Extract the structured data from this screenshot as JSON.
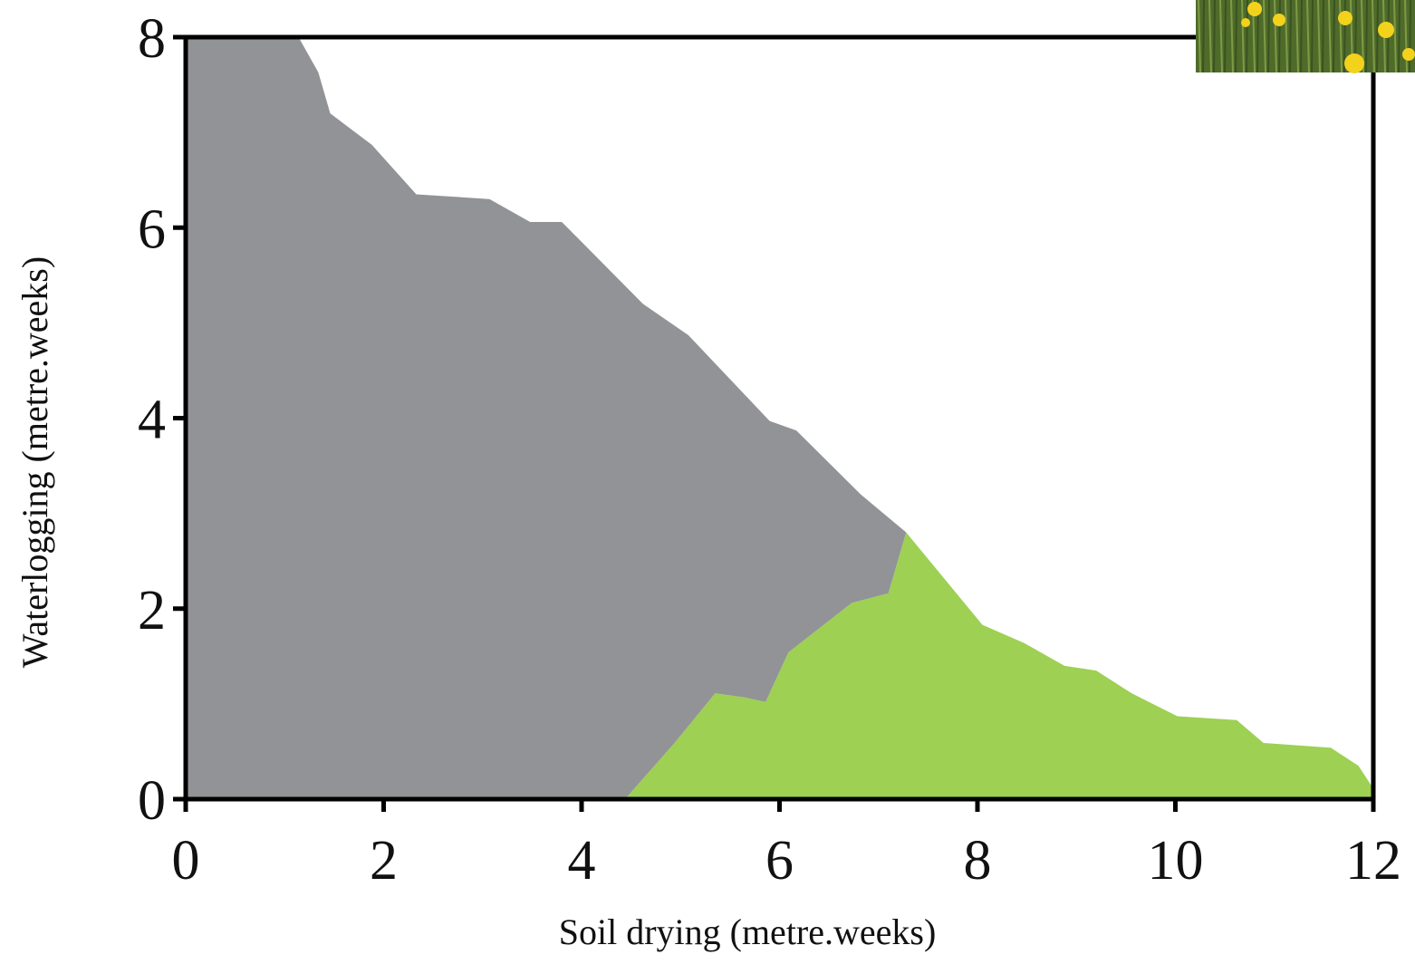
{
  "chart_data": {
    "type": "area",
    "x_label": "Soil drying (metre.weeks)",
    "y_label": "Waterlogging (metre.weeks)",
    "xlim": [
      0,
      12
    ],
    "ylim": [
      0,
      8
    ],
    "xticks": [
      0,
      2,
      4,
      6,
      8,
      10,
      12
    ],
    "yticks": [
      0,
      2,
      4,
      6,
      8
    ],
    "series": [
      {
        "color": "#929396",
        "x": [
          0,
          0,
          1.14,
          1.34,
          1.46,
          1.88,
          2.33,
          3.07,
          3.48,
          3.8,
          4.62,
          5.08,
          5.9,
          6.17,
          6.82,
          7.28,
          7.1,
          6.73,
          6.09,
          5.86,
          5.63,
          5.35,
          4.94,
          4.44
        ],
        "values": [
          0,
          8,
          8,
          7.63,
          7.2,
          6.87,
          6.35,
          6.3,
          6.06,
          6.06,
          5.2,
          4.87,
          3.97,
          3.87,
          3.2,
          2.8,
          2.16,
          2.06,
          1.54,
          1.02,
          1.07,
          1.11,
          0.59,
          0
        ]
      },
      {
        "color": "#9dd053",
        "x": [
          4.44,
          4.94,
          5.35,
          5.63,
          5.86,
          6.09,
          6.73,
          7.1,
          7.28,
          8.05,
          8.47,
          8.88,
          9.2,
          9.56,
          10.02,
          10.62,
          10.89,
          11.57,
          11.85,
          12,
          12
        ],
        "values": [
          0,
          0.59,
          1.11,
          1.07,
          1.02,
          1.54,
          2.06,
          2.16,
          2.8,
          1.83,
          1.64,
          1.4,
          1.35,
          1.11,
          0.87,
          0.83,
          0.59,
          0.54,
          0.35,
          0.11,
          0
        ]
      }
    ]
  }
}
